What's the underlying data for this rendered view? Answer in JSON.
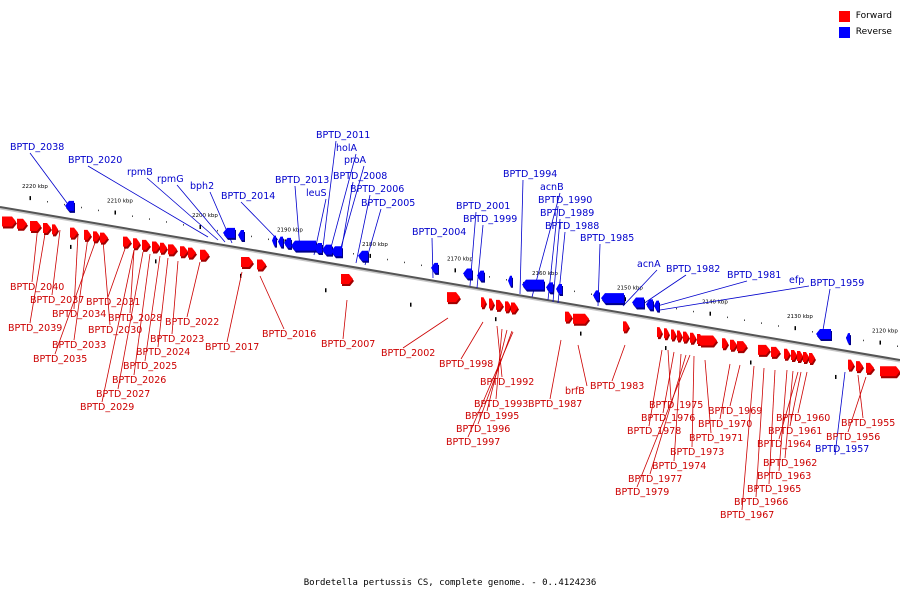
{
  "legend": {
    "forward_label": "Forward",
    "reverse_label": "Reverse",
    "forward_color": "#ff0000",
    "reverse_color": "#0000ff"
  },
  "caption": "Bordetella pertussis CS, complete genome. - 0..4124236",
  "scale_ticks": [
    "2220 kbp",
    "2210 kbp",
    "2200 kbp",
    "2190 kbp",
    "2180 kbp",
    "2170 kbp",
    "2160 kbp",
    "2150 kbp",
    "2140 kbp",
    "2130 kbp",
    "2120 kbp"
  ],
  "reverse_labels": [
    "BPTD_2038",
    "BPTD_2020",
    "rpmB",
    "rpmG",
    "bph2",
    "BPTD_2014",
    "BPTD_2013",
    "leuS",
    "BPTD_2011",
    "holA",
    "proA",
    "BPTD_2008",
    "BPTD_2006",
    "BPTD_2005",
    "BPTD_2004",
    "BPTD_2001",
    "BPTD_1999",
    "BPTD_1994",
    "acnB",
    "BPTD_1990",
    "BPTD_1989",
    "BPTD_1988",
    "BPTD_1985",
    "acnA",
    "BPTD_1982",
    "BPTD_1981",
    "efp",
    "BPTD_1959",
    "BPTD_1957"
  ],
  "forward_labels": [
    "BPTD_2040",
    "BPTD_2037",
    "BPTD_2039",
    "BPTD_2034",
    "BPTD_2033",
    "BPTD_2035",
    "BPTD_2031",
    "BPTD_2030",
    "BPTD_2028",
    "BPTD_2029",
    "BPTD_2027",
    "BPTD_2026",
    "BPTD_2025",
    "BPTD_2024",
    "BPTD_2023",
    "BPTD_2022",
    "BPTD_2017",
    "BPTD_2016",
    "BPTD_2007",
    "BPTD_2002",
    "BPTD_1998",
    "BPTD_1992",
    "BPTD_1993",
    "BPTD_1995",
    "BPTD_1996",
    "BPTD_1997",
    "BPTD_1987",
    "brfB",
    "BPTD_1983",
    "BPTD_1975",
    "BPTD_1976",
    "BPTD_1978",
    "BPTD_1974",
    "BPTD_1977",
    "BPTD_1979",
    "BPTD_1973",
    "BPTD_1971",
    "BPTD_1970",
    "BPTD_1969",
    "BPTD_1967",
    "BPTD_1966",
    "BPTD_1965",
    "BPTD_1963",
    "BPTD_1962",
    "BPTD_1964",
    "BPTD_1961",
    "BPTD_1960",
    "BPTD_1955",
    "BPTD_1956"
  ]
}
